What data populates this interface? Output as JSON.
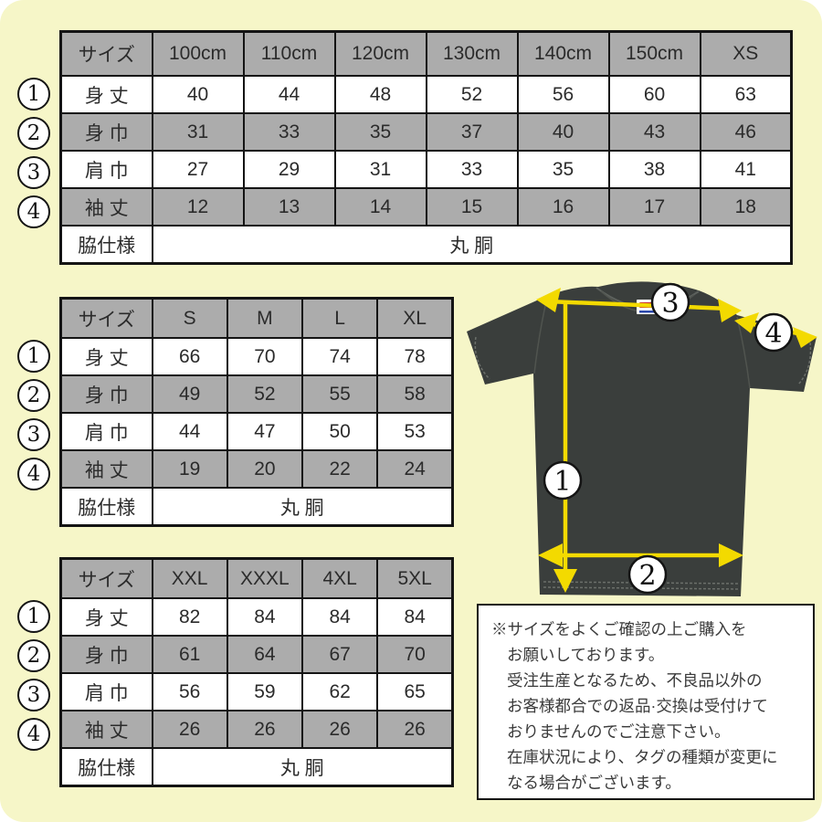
{
  "colors": {
    "background": "#f6f6c8",
    "table_gray": "#acacac",
    "arrow_yellow": "#f3da00",
    "shirt_body": "#3a3e3c",
    "border": "#141414"
  },
  "tables": [
    {
      "size_header": "サイズ",
      "columns": [
        "100cm",
        "110cm",
        "120cm",
        "130cm",
        "140cm",
        "150cm",
        "XS"
      ],
      "rows": [
        {
          "marker": "1",
          "label": "身 丈",
          "values": [
            "40",
            "44",
            "48",
            "52",
            "56",
            "60",
            "63"
          ]
        },
        {
          "marker": "2",
          "label": "身 巾",
          "values": [
            "31",
            "33",
            "35",
            "37",
            "40",
            "43",
            "46"
          ]
        },
        {
          "marker": "3",
          "label": "肩 巾",
          "values": [
            "27",
            "29",
            "31",
            "33",
            "35",
            "38",
            "41"
          ]
        },
        {
          "marker": "4",
          "label": "袖 丈",
          "values": [
            "12",
            "13",
            "14",
            "15",
            "16",
            "17",
            "18"
          ]
        }
      ],
      "footer_label": "脇仕様",
      "footer_value": "丸 胴"
    },
    {
      "size_header": "サイズ",
      "columns": [
        "S",
        "M",
        "L",
        "XL"
      ],
      "rows": [
        {
          "marker": "1",
          "label": "身 丈",
          "values": [
            "66",
            "70",
            "74",
            "78"
          ]
        },
        {
          "marker": "2",
          "label": "身 巾",
          "values": [
            "49",
            "52",
            "55",
            "58"
          ]
        },
        {
          "marker": "3",
          "label": "肩 巾",
          "values": [
            "44",
            "47",
            "50",
            "53"
          ]
        },
        {
          "marker": "4",
          "label": "袖 丈",
          "values": [
            "19",
            "20",
            "22",
            "24"
          ]
        }
      ],
      "footer_label": "脇仕様",
      "footer_value": "丸 胴"
    },
    {
      "size_header": "サイズ",
      "columns": [
        "XXL",
        "XXXL",
        "4XL",
        "5XL"
      ],
      "rows": [
        {
          "marker": "1",
          "label": "身 丈",
          "values": [
            "82",
            "84",
            "84",
            "84"
          ]
        },
        {
          "marker": "2",
          "label": "身 巾",
          "values": [
            "61",
            "64",
            "67",
            "70"
          ]
        },
        {
          "marker": "3",
          "label": "肩 巾",
          "values": [
            "56",
            "59",
            "62",
            "65"
          ]
        },
        {
          "marker": "4",
          "label": "袖 丈",
          "values": [
            "26",
            "26",
            "26",
            "26"
          ]
        }
      ],
      "footer_label": "脇仕様",
      "footer_value": "丸 胴"
    }
  ],
  "shirt": {
    "markers": [
      "1",
      "2",
      "3",
      "4"
    ]
  },
  "note": {
    "lines": [
      "※サイズをよくご確認の上ご購入を",
      "お願いしております。",
      "受注生産となるため、不良品以外の",
      "お客様都合での返品·交換は受付けて",
      "おりませんのでご注意下さい。",
      "在庫状況により、タグの種類が変更に",
      "なる場合がございます。"
    ]
  }
}
